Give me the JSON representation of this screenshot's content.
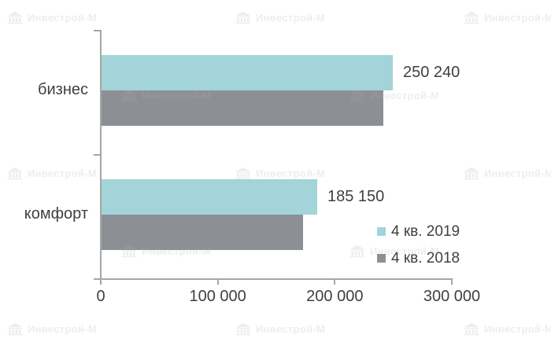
{
  "watermark": {
    "text": "Инвестрой-М",
    "icon": "building-icon"
  },
  "colors": {
    "background": "#ffffff",
    "axis": "#a6a6a6",
    "text": "#3f3f3f",
    "series_2019": "#a2d4d9",
    "series_2018": "#8c9095",
    "watermark": "#aeb2b5"
  },
  "chart_data": {
    "type": "bar",
    "orientation": "horizontal",
    "title": "",
    "categories": [
      "бизнес",
      "комфорт"
    ],
    "series": [
      {
        "name": "4 кв. 2019",
        "color": "#a2d4d9",
        "values": [
          250240,
          185150
        ],
        "data_labels": [
          "250 240",
          "185 150"
        ],
        "estimated": false
      },
      {
        "name": "4 кв. 2018",
        "color": "#8c9095",
        "values": [
          242000,
          173000
        ],
        "data_labels": [
          "",
          ""
        ],
        "estimated": true
      }
    ],
    "x_axis": {
      "min": 0,
      "max": 300000,
      "tick_values": [
        0,
        100000,
        200000,
        300000
      ],
      "tick_labels": [
        "0",
        "100 000",
        "200 000",
        "300 000"
      ]
    },
    "y_axis": {
      "tick_labels": [
        "бизнес",
        "комфорт"
      ]
    },
    "grid": false,
    "legend_position": "inside-bottom-right"
  }
}
